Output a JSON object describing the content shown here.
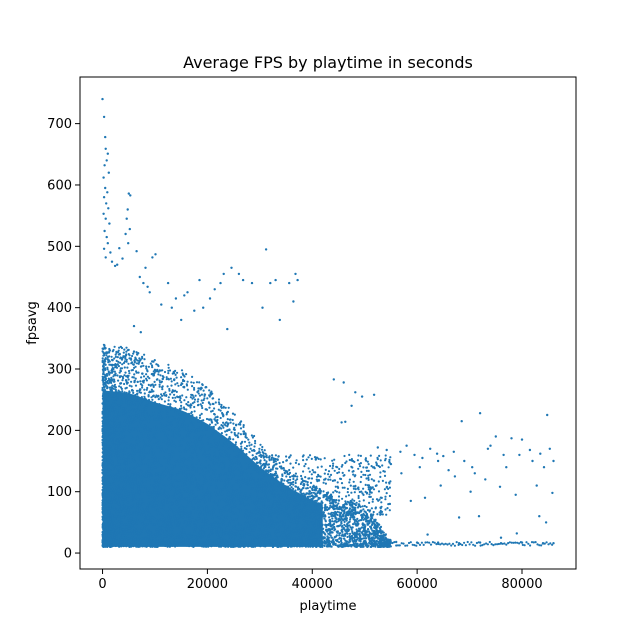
{
  "chart_data": {
    "type": "scatter",
    "title": "Average FPS by playtime in seconds",
    "xlabel": "playtime",
    "ylabel": "fpsavg",
    "xlim": [
      -4300,
      90300
    ],
    "ylim": [
      -26,
      776
    ],
    "xticks": [
      0,
      20000,
      40000,
      60000,
      80000
    ],
    "xtick_labels": [
      "0",
      "20000",
      "40000",
      "60000",
      "80000"
    ],
    "yticks": [
      0,
      100,
      200,
      300,
      400,
      500,
      600,
      700
    ],
    "ytick_labels": [
      "0",
      "100",
      "200",
      "300",
      "400",
      "500",
      "600",
      "700"
    ],
    "grid": false,
    "marker_color": "#1f77b4",
    "dense_region": {
      "description_points": [
        [
          0,
          340
        ],
        [
          5000,
          335
        ],
        [
          10000,
          315
        ],
        [
          15000,
          300
        ],
        [
          20000,
          270
        ],
        [
          25000,
          230
        ],
        [
          30000,
          180
        ],
        [
          35000,
          140
        ],
        [
          40000,
          110
        ],
        [
          45000,
          90
        ],
        [
          50000,
          80
        ],
        [
          55000,
          20
        ]
      ],
      "y_floor": 10
    },
    "points": [
      [
        0,
        740
      ],
      [
        300,
        711
      ],
      [
        500,
        678
      ],
      [
        600,
        659
      ],
      [
        1000,
        651
      ],
      [
        800,
        640
      ],
      [
        400,
        632
      ],
      [
        1200,
        620
      ],
      [
        200,
        612
      ],
      [
        500,
        595
      ],
      [
        900,
        588
      ],
      [
        300,
        580
      ],
      [
        700,
        570
      ],
      [
        1100,
        562
      ],
      [
        200,
        553
      ],
      [
        600,
        545
      ],
      [
        1300,
        537
      ],
      [
        400,
        525
      ],
      [
        800,
        515
      ],
      [
        1000,
        505
      ],
      [
        300,
        496
      ],
      [
        1500,
        490
      ],
      [
        600,
        482
      ],
      [
        1800,
        475
      ],
      [
        2400,
        468
      ],
      [
        5000,
        586
      ],
      [
        5300,
        583
      ],
      [
        4800,
        560
      ],
      [
        4600,
        545
      ],
      [
        5200,
        528
      ],
      [
        4400,
        520
      ],
      [
        4900,
        505
      ],
      [
        3200,
        497
      ],
      [
        3800,
        480
      ],
      [
        2800,
        470
      ],
      [
        6500,
        492
      ],
      [
        8200,
        465
      ],
      [
        9500,
        482
      ],
      [
        10100,
        487
      ],
      [
        7100,
        450
      ],
      [
        7800,
        440
      ],
      [
        8600,
        434
      ],
      [
        9000,
        425
      ],
      [
        12500,
        440
      ],
      [
        14000,
        415
      ],
      [
        15600,
        420
      ],
      [
        16200,
        425
      ],
      [
        18500,
        445
      ],
      [
        19200,
        400
      ],
      [
        20500,
        415
      ],
      [
        21400,
        430
      ],
      [
        22500,
        440
      ],
      [
        23100,
        455
      ],
      [
        24600,
        465
      ],
      [
        26000,
        455
      ],
      [
        26800,
        445
      ],
      [
        28500,
        440
      ],
      [
        31200,
        495
      ],
      [
        32000,
        440
      ],
      [
        33000,
        445
      ],
      [
        30500,
        400
      ],
      [
        33800,
        380
      ],
      [
        35600,
        440
      ],
      [
        36800,
        455
      ],
      [
        37200,
        445
      ],
      [
        36400,
        410
      ],
      [
        17500,
        395
      ],
      [
        13200,
        400
      ],
      [
        11200,
        405
      ],
      [
        15000,
        380
      ],
      [
        23800,
        365
      ],
      [
        6000,
        370
      ],
      [
        7300,
        360
      ],
      [
        44100,
        283
      ],
      [
        46000,
        278
      ],
      [
        48200,
        262
      ],
      [
        49500,
        255
      ],
      [
        51800,
        258
      ],
      [
        47500,
        240
      ],
      [
        45600,
        213
      ],
      [
        46300,
        214
      ],
      [
        52500,
        172
      ],
      [
        54200,
        168
      ],
      [
        56800,
        165
      ],
      [
        58000,
        175
      ],
      [
        59500,
        160
      ],
      [
        61000,
        155
      ],
      [
        62500,
        170
      ],
      [
        63800,
        162
      ],
      [
        65000,
        158
      ],
      [
        67000,
        165
      ],
      [
        68500,
        215
      ],
      [
        70500,
        140
      ],
      [
        72000,
        228
      ],
      [
        73500,
        170
      ],
      [
        75000,
        190
      ],
      [
        76500,
        160
      ],
      [
        78000,
        187
      ],
      [
        80000,
        185
      ],
      [
        81500,
        168
      ],
      [
        83500,
        162
      ],
      [
        84800,
        225
      ],
      [
        85300,
        170
      ],
      [
        86000,
        150
      ],
      [
        55000,
        145
      ],
      [
        57000,
        130
      ],
      [
        60500,
        140
      ],
      [
        64000,
        150
      ],
      [
        66000,
        135
      ],
      [
        69000,
        150
      ],
      [
        71000,
        130
      ],
      [
        74000,
        175
      ],
      [
        77000,
        140
      ],
      [
        79500,
        160
      ],
      [
        82000,
        150
      ],
      [
        84200,
        140
      ],
      [
        85800,
        98
      ],
      [
        82800,
        110
      ],
      [
        78800,
        95
      ],
      [
        75800,
        108
      ],
      [
        73000,
        120
      ],
      [
        70200,
        100
      ],
      [
        67200,
        125
      ],
      [
        64500,
        110
      ],
      [
        61500,
        90
      ],
      [
        58800,
        85
      ],
      [
        71800,
        60
      ],
      [
        68000,
        58
      ],
      [
        83300,
        60
      ],
      [
        84600,
        50
      ],
      [
        76000,
        25
      ],
      [
        79000,
        32
      ],
      [
        62000,
        30
      ],
      [
        56000,
        18
      ],
      [
        60000,
        17
      ],
      [
        64000,
        17
      ],
      [
        68000,
        16
      ],
      [
        72000,
        17
      ],
      [
        76000,
        16
      ],
      [
        80000,
        17
      ],
      [
        84000,
        16
      ],
      [
        86000,
        16
      ]
    ]
  }
}
